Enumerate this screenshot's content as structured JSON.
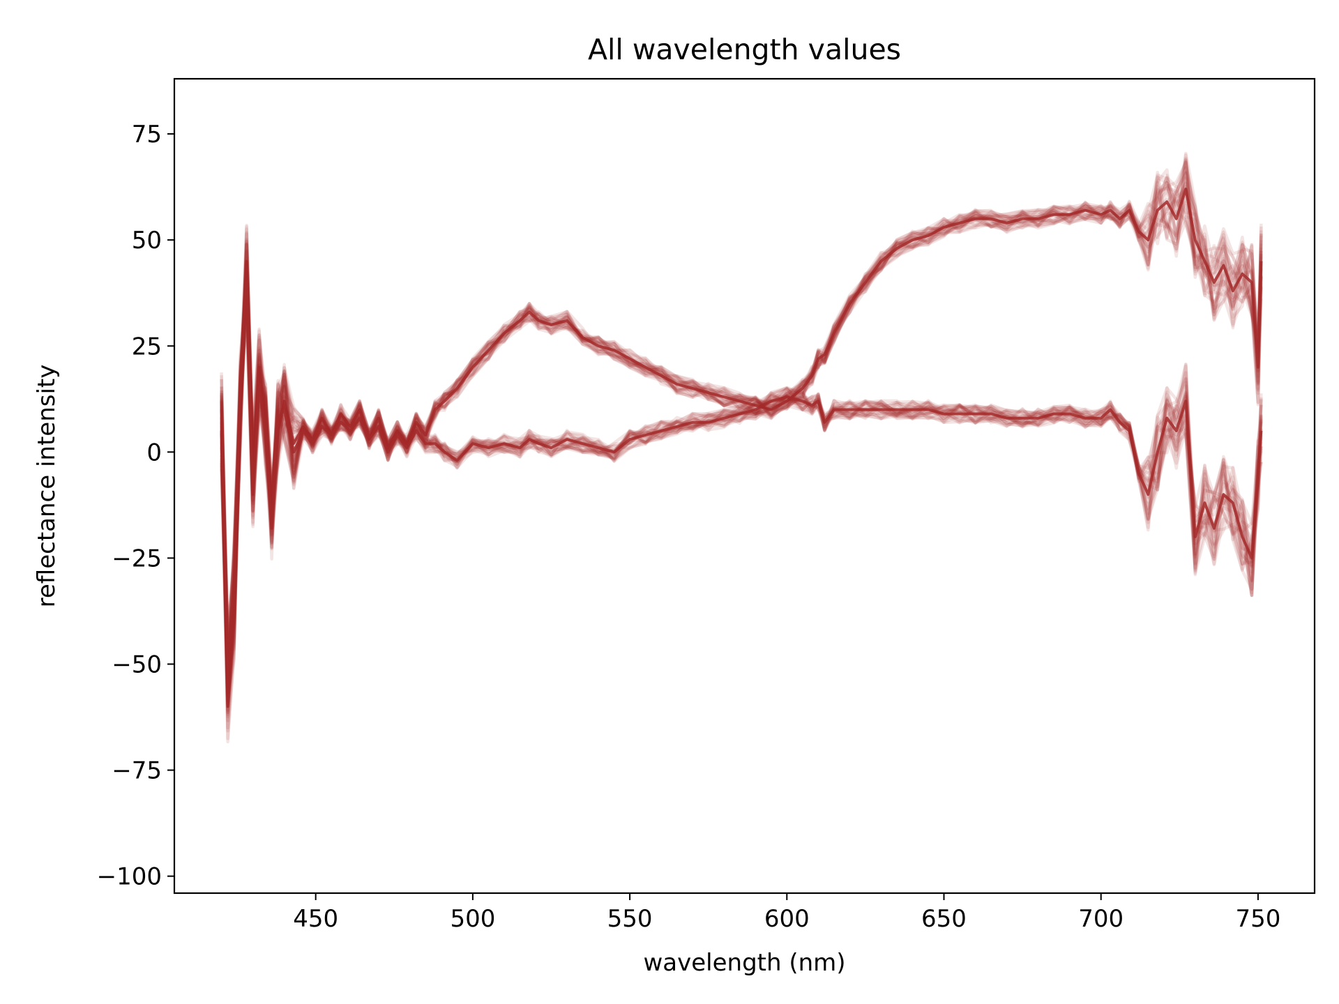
{
  "chart_data": {
    "type": "line",
    "title": "All wavelength values",
    "xlabel": "wavelength (nm)",
    "ylabel": "reflectance intensity",
    "xlim": [
      405,
      768
    ],
    "ylim": [
      -104,
      88
    ],
    "xticks": [
      450,
      500,
      550,
      600,
      650,
      700,
      750
    ],
    "xtick_labels": [
      "450",
      "500",
      "550",
      "600",
      "650",
      "700",
      "750"
    ],
    "yticks": [
      75,
      50,
      25,
      0,
      -25,
      -50,
      -75,
      -100
    ],
    "ytick_labels": [
      "75",
      "50",
      "25",
      "0",
      "−25",
      "−50",
      "−75",
      "−100"
    ],
    "grid": false,
    "legend": "none",
    "line_color": "#a52a2a",
    "line_alpha": 0.12,
    "replicate_count": 30,
    "series_groups": [
      {
        "x": [
          420,
          422,
          424,
          426,
          428,
          430,
          432,
          434,
          436,
          438,
          440,
          443,
          446,
          449,
          452,
          455,
          458,
          461,
          464,
          467,
          470,
          473,
          476,
          479,
          482,
          485,
          488,
          491,
          495,
          500,
          505,
          510,
          515,
          518,
          521,
          525,
          530,
          535,
          540,
          545,
          550,
          555,
          560,
          565,
          570,
          575,
          580,
          585,
          590,
          595,
          600,
          605,
          608,
          610,
          612,
          615,
          620,
          625,
          630,
          635,
          640,
          645,
          650,
          655,
          660,
          665,
          670,
          675,
          680,
          685,
          690,
          695,
          700,
          703,
          706,
          709,
          712,
          715,
          718,
          721,
          724,
          727,
          730,
          733,
          736,
          739,
          742,
          745,
          748,
          750,
          751
        ],
        "y": [
          5,
          -60,
          -40,
          10,
          45,
          -5,
          20,
          8,
          -15,
          5,
          12,
          2,
          6,
          3,
          8,
          4,
          9,
          6,
          10,
          3,
          8,
          1,
          5,
          2,
          7,
          4,
          10,
          12,
          15,
          20,
          24,
          28,
          31,
          33,
          31,
          30,
          31,
          27,
          25,
          24,
          22,
          20,
          18,
          16,
          15,
          14,
          13,
          12,
          11,
          10,
          12,
          15,
          18,
          22,
          23,
          28,
          35,
          40,
          45,
          48,
          50,
          51,
          53,
          54,
          55,
          55,
          54,
          55,
          55,
          56,
          56,
          57,
          56,
          57,
          55,
          57,
          52,
          50,
          57,
          59,
          55,
          62,
          50,
          45,
          40,
          44,
          38,
          42,
          40,
          20,
          45
        ]
      },
      {
        "x": [
          420,
          422,
          424,
          426,
          428,
          430,
          432,
          434,
          436,
          438,
          440,
          443,
          446,
          449,
          452,
          455,
          458,
          461,
          464,
          467,
          470,
          473,
          476,
          479,
          482,
          485,
          488,
          491,
          495,
          500,
          505,
          510,
          515,
          518,
          521,
          525,
          530,
          535,
          540,
          545,
          550,
          555,
          560,
          565,
          570,
          575,
          580,
          585,
          590,
          595,
          600,
          605,
          608,
          610,
          612,
          615,
          620,
          625,
          630,
          635,
          640,
          645,
          650,
          655,
          660,
          665,
          670,
          675,
          680,
          685,
          690,
          695,
          700,
          703,
          706,
          709,
          712,
          715,
          718,
          721,
          724,
          727,
          730,
          733,
          736,
          739,
          742,
          745,
          748,
          750,
          751
        ],
        "y": [
          10,
          -50,
          -30,
          15,
          40,
          -10,
          15,
          5,
          -18,
          8,
          10,
          0,
          5,
          2,
          6,
          4,
          7,
          5,
          8,
          3,
          6,
          0,
          4,
          1,
          5,
          2,
          2,
          0,
          -2,
          2,
          1,
          2,
          1,
          3,
          2,
          1,
          3,
          2,
          1,
          0,
          3,
          4,
          5,
          6,
          7,
          7,
          8,
          9,
          10,
          12,
          13,
          12,
          11,
          12,
          7,
          10,
          10,
          10,
          10,
          10,
          10,
          10,
          9,
          9,
          9,
          9,
          8,
          8,
          8,
          9,
          9,
          8,
          8,
          10,
          7,
          5,
          -5,
          -10,
          0,
          8,
          5,
          12,
          -20,
          -12,
          -18,
          -10,
          -12,
          -20,
          -25,
          -5,
          5
        ]
      }
    ]
  }
}
